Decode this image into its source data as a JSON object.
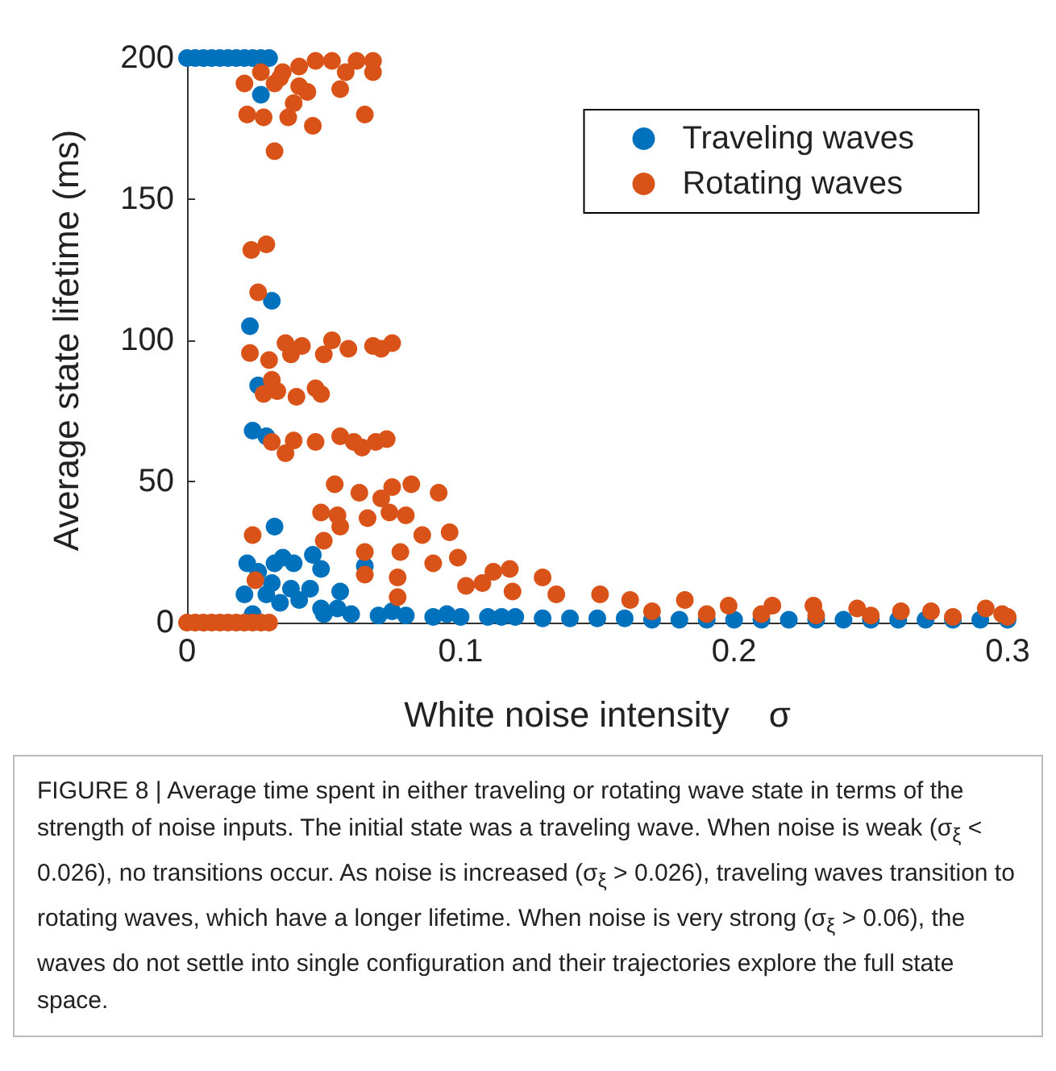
{
  "chart_data": {
    "type": "scatter",
    "xlabel": "White noise intensity    σ",
    "ylabel": "Average state lifetime (ms)",
    "xlim": [
      0,
      0.3
    ],
    "xticks": [
      0,
      0.1,
      0.2,
      0.3
    ],
    "ylim": [
      0,
      200
    ],
    "yticks": [
      0,
      50,
      100,
      150,
      200
    ],
    "grid": false,
    "legend": "top right",
    "marker": "circle",
    "annotations": [
      "FIGURE 8 | Average time spent in either traveling or rotating wave state in terms of the strength of noise inputs. The initial state was a traveling wave. When noise is weak (σ$_{ξ}$ < 0.026), no transitions occur. As noise is increased (σ$_{ξ}$ > 0.026), traveling waves transition to rotating waves, which have a longer lifetime. When noise is very strong (σ$_{ξ}$ > 0.06), the waves do not settle into single configuration and their trajectories explore the full state space."
    ],
    "series": [
      {
        "name": "Traveling waves",
        "color": "#0072bd",
        "x": [
          0,
          0.003,
          0.006,
          0.009,
          0.012,
          0.015,
          0.018,
          0.021,
          0.024,
          0.027,
          0.03,
          0.027,
          0.031,
          0.023,
          0.026,
          0.024,
          0.029,
          0.032,
          0.022,
          0.021,
          0.026,
          0.032,
          0.035,
          0.039,
          0.046,
          0.049,
          0.031,
          0.038,
          0.045,
          0.056,
          0.065,
          0.029,
          0.034,
          0.041,
          0.049,
          0.024,
          0.05,
          0.06,
          0.07,
          0.08,
          0.09,
          0.1,
          0.11,
          0.12,
          0.13,
          0.14,
          0.15,
          0.16,
          0.17,
          0.18,
          0.19,
          0.2,
          0.21,
          0.22,
          0.23,
          0.24,
          0.25,
          0.26,
          0.27,
          0.28,
          0.29,
          0.3,
          0.055,
          0.075,
          0.095,
          0.115
        ],
        "values": [
          200,
          200,
          200,
          200,
          200,
          200,
          200,
          200,
          200,
          200,
          200,
          187,
          114,
          105,
          84,
          68,
          66,
          34,
          21,
          10,
          18,
          21,
          23,
          21,
          24,
          19,
          14,
          12,
          12,
          11,
          20,
          10,
          7,
          8,
          5,
          3,
          3,
          3,
          2.5,
          2.5,
          2,
          2,
          2,
          2,
          1.5,
          1.5,
          1.5,
          1.5,
          1,
          1,
          1,
          1,
          1,
          1,
          1,
          1,
          1,
          1,
          1,
          1,
          1,
          1,
          5,
          4,
          3,
          2
        ]
      },
      {
        "name": "Rotating waves",
        "color": "#d95319",
        "x": [
          0,
          0.003,
          0.006,
          0.009,
          0.012,
          0.015,
          0.018,
          0.021,
          0.024,
          0.027,
          0.03,
          0.021,
          0.027,
          0.032,
          0.035,
          0.041,
          0.047,
          0.053,
          0.058,
          0.062,
          0.068,
          0.068,
          0.022,
          0.028,
          0.039,
          0.037,
          0.044,
          0.046,
          0.056,
          0.065,
          0.032,
          0.034,
          0.041,
          0.0235,
          0.029,
          0.026,
          0.023,
          0.03,
          0.036,
          0.042,
          0.038,
          0.05,
          0.053,
          0.059,
          0.068,
          0.071,
          0.075,
          0.028,
          0.031,
          0.033,
          0.04,
          0.047,
          0.049,
          0.031,
          0.036,
          0.039,
          0.047,
          0.056,
          0.061,
          0.064,
          0.069,
          0.073,
          0.054,
          0.063,
          0.071,
          0.075,
          0.082,
          0.092,
          0.049,
          0.055,
          0.066,
          0.074,
          0.08,
          0.056,
          0.086,
          0.096,
          0.05,
          0.065,
          0.078,
          0.099,
          0.09,
          0.065,
          0.077,
          0.112,
          0.118,
          0.13,
          0.077,
          0.102,
          0.108,
          0.119,
          0.135,
          0.151,
          0.162,
          0.182,
          0.198,
          0.214,
          0.229,
          0.245,
          0.261,
          0.272,
          0.292,
          0.298,
          0.024,
          0.025,
          0.17,
          0.19,
          0.21,
          0.23,
          0.25,
          0.28,
          0.3
        ],
        "values": [
          0,
          0,
          0,
          0,
          0,
          0,
          0,
          0,
          0,
          0,
          0,
          191,
          195,
          191,
          195,
          197,
          199,
          199,
          195,
          199,
          199,
          195,
          180,
          179,
          184,
          179,
          188,
          176,
          189,
          180,
          167,
          193,
          190,
          132,
          134,
          117,
          95.5,
          93,
          99,
          98,
          95,
          95,
          100,
          97,
          98,
          97,
          99,
          81,
          86,
          82,
          80,
          83,
          81,
          64,
          60,
          64.5,
          64,
          66,
          64,
          62,
          64,
          65,
          49,
          46,
          44,
          48,
          49,
          46,
          39,
          38,
          37,
          39,
          38,
          34,
          31,
          32,
          29,
          25,
          25,
          23,
          21,
          17,
          16,
          18,
          19,
          16,
          9,
          13,
          14,
          11,
          10,
          10,
          8,
          8,
          6,
          6,
          6,
          5,
          4,
          4,
          5,
          3,
          31,
          15,
          4,
          3,
          3,
          2.5,
          2.5,
          2,
          2
        ]
      }
    ]
  }
}
